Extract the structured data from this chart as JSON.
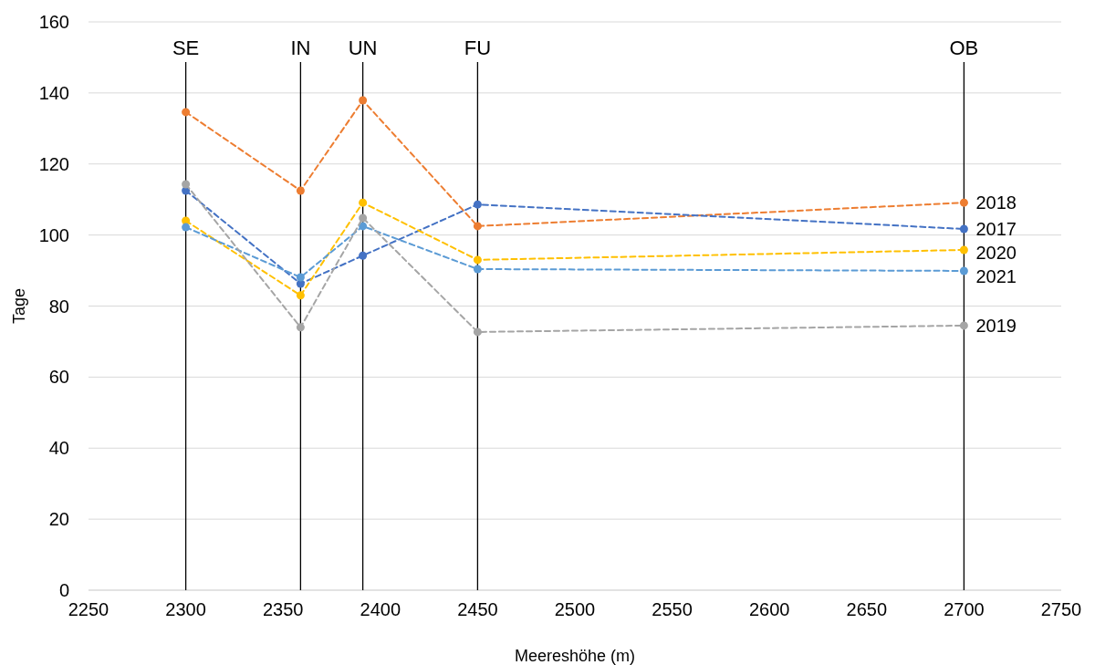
{
  "chart_data": {
    "type": "line",
    "xlabel": "Meereshöhe (m)",
    "ylabel": "Tage",
    "x": [
      2300,
      2359,
      2391,
      2450,
      2700
    ],
    "series": [
      {
        "name": "2018",
        "color": "#ed7d31",
        "values": [
          134.6,
          112.5,
          137.9,
          102.5,
          109.1
        ]
      },
      {
        "name": "2017",
        "color": "#4472c4",
        "values": [
          112.5,
          86.3,
          94.2,
          108.6,
          101.7
        ]
      },
      {
        "name": "2020",
        "color": "#ffc000",
        "values": [
          104,
          83,
          109.1,
          93,
          95.8
        ]
      },
      {
        "name": "2021",
        "color": "#5b9bd5",
        "values": [
          102.2,
          88.1,
          102.5,
          90.4,
          89.9
        ]
      },
      {
        "name": "2019",
        "color": "#a5a5a5",
        "values": [
          114.3,
          74,
          104.8,
          72.7,
          74.5
        ]
      }
    ],
    "xlim": [
      2250,
      2750
    ],
    "xticks": [
      2250,
      2300,
      2350,
      2400,
      2450,
      2500,
      2550,
      2600,
      2650,
      2700,
      2750
    ],
    "ylim": [
      0,
      160
    ],
    "yticks": [
      0,
      20,
      40,
      60,
      80,
      100,
      120,
      140,
      160
    ],
    "ref_lines": [
      {
        "axis": "x",
        "value": 2300,
        "label": "SE",
        "color": "#000000"
      },
      {
        "axis": "x",
        "value": 2359,
        "label": "IN",
        "color": "#000000"
      },
      {
        "axis": "x",
        "value": 2391,
        "label": "UN",
        "color": "#000000"
      },
      {
        "axis": "x",
        "value": 2450,
        "label": "FU",
        "color": "#000000"
      },
      {
        "axis": "x",
        "value": 2700,
        "label": "OB",
        "color": "#000000"
      }
    ],
    "grid": "y",
    "legend": false,
    "marker": "circle",
    "line_style": "dashed"
  }
}
